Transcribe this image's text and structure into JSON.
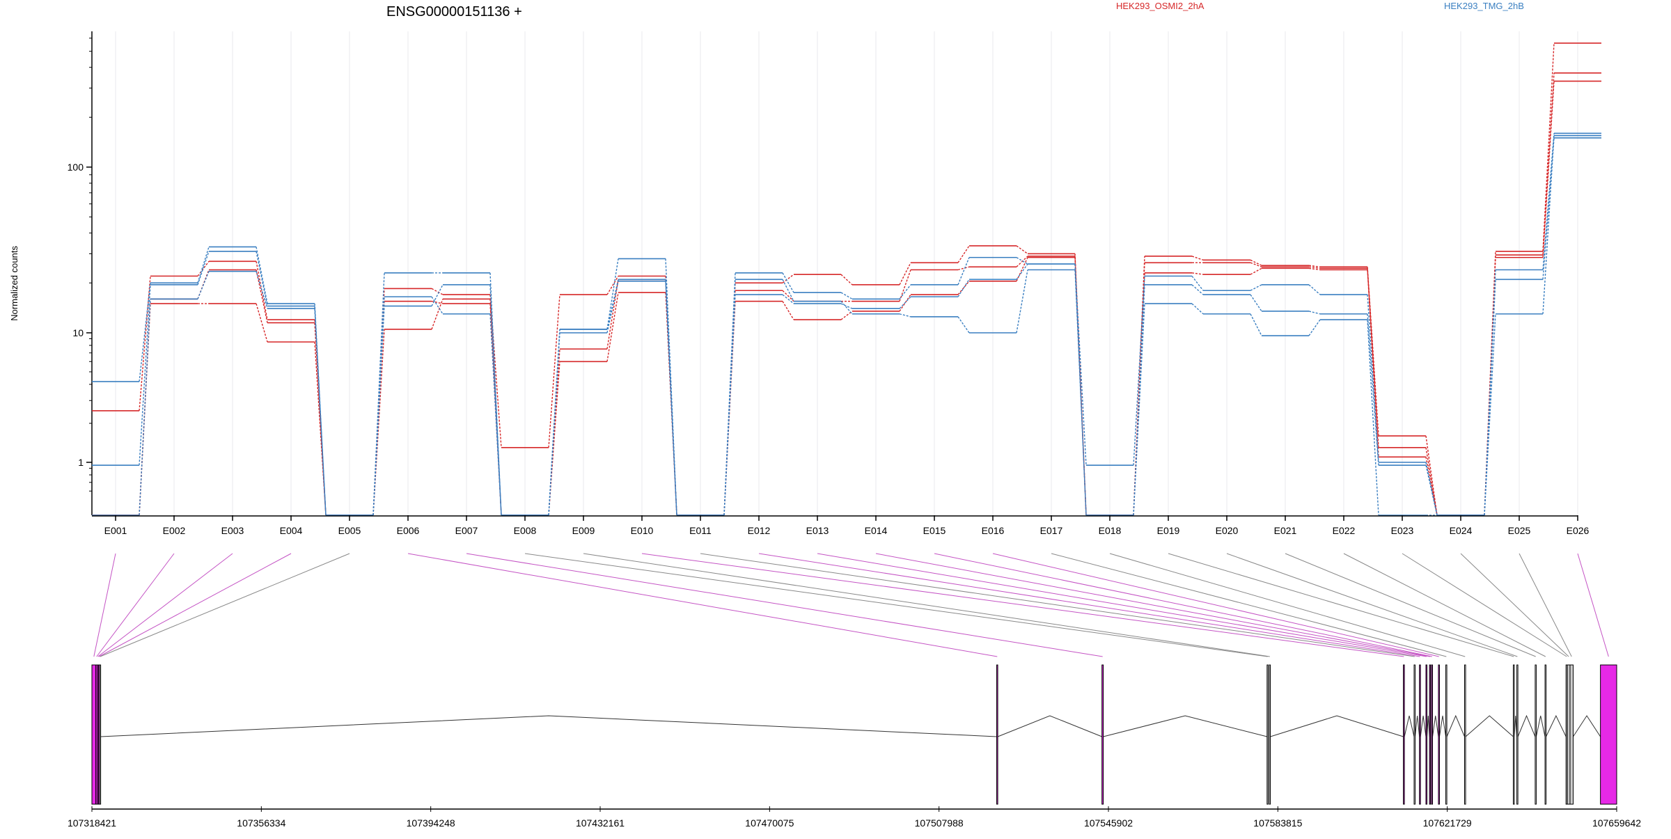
{
  "chart_data": {
    "type": "line",
    "title": "ENSG00000151136 +",
    "ylabel": "Normalized counts",
    "xlabel": "",
    "yscale": "log",
    "yticks": [
      {
        "value": 1,
        "label": "1"
      },
      {
        "value": 10,
        "label": "10"
      },
      {
        "value": 100,
        "label": "100"
      }
    ],
    "ylim": [
      0.5,
      700
    ],
    "grid": "vertical",
    "legend_position": "top",
    "categories": [
      "E001",
      "E002",
      "E003",
      "E004",
      "E005",
      "E006",
      "E007",
      "E008",
      "E009",
      "E010",
      "E011",
      "E012",
      "E013",
      "E014",
      "E015",
      "E016",
      "E017",
      "E018",
      "E019",
      "E020",
      "E021",
      "E022",
      "E023",
      "E024",
      "E025",
      "E026"
    ],
    "legend": [
      {
        "name": "HEK293_OSMI2_2hA",
        "color": "#d62728"
      },
      {
        "name": "HEK293_TMG_2hB",
        "color": "#3a7fc1"
      }
    ],
    "series": [
      {
        "group": "HEK293_OSMI2_2hA",
        "color": "#d62728",
        "values": [
          2.5,
          22,
          27,
          12,
          0.5,
          18.5,
          17,
          1.3,
          17,
          22,
          0.5,
          20,
          22.5,
          19.5,
          26.5,
          33.5,
          30,
          0.5,
          29,
          27.5,
          25.5,
          25,
          1.6,
          0.5,
          31,
          560
        ]
      },
      {
        "group": "HEK293_OSMI2_2hA",
        "color": "#d62728",
        "values": [
          0.5,
          15,
          15,
          8.5,
          0.5,
          10.5,
          16,
          0.5,
          6,
          17.5,
          0.5,
          15.5,
          12,
          13.5,
          17,
          20.5,
          28.5,
          0.5,
          23,
          22.5,
          24.5,
          24,
          1.1,
          0.5,
          28.5,
          330
        ]
      },
      {
        "group": "HEK293_OSMI2_2hA",
        "color": "#d62728",
        "values": [
          0.5,
          16,
          24,
          11.5,
          0.5,
          15.5,
          15,
          0.5,
          7.5,
          21,
          0.5,
          18,
          15.5,
          15.5,
          24,
          25,
          29,
          0.5,
          26.5,
          26.5,
          25,
          24.5,
          1.3,
          0.5,
          29.5,
          370
        ]
      },
      {
        "group": "HEK293_TMG_2hB",
        "color": "#3a7fc1",
        "values": [
          4.2,
          20,
          33,
          15,
          0.5,
          23,
          23,
          0.5,
          10.5,
          28,
          0.5,
          23,
          17.5,
          16,
          19.5,
          28.5,
          26,
          0.95,
          22,
          18,
          19.5,
          17,
          1.0,
          0.5,
          24,
          160
        ]
      },
      {
        "group": "HEK293_TMG_2hB",
        "color": "#3a7fc1",
        "values": [
          0.95,
          19.5,
          31,
          14.5,
          0.5,
          14.5,
          19.5,
          0.5,
          10,
          20.5,
          0.5,
          21,
          15.5,
          13,
          12.5,
          10,
          24,
          0.5,
          19.5,
          17,
          13.5,
          13,
          0.95,
          0.5,
          21,
          150
        ]
      },
      {
        "group": "HEK293_TMG_2hB",
        "color": "#3a7fc1",
        "values": [
          0.5,
          16,
          23.5,
          14,
          0.5,
          16.5,
          13,
          0.5,
          10.5,
          21,
          0.5,
          17,
          15,
          14,
          16.5,
          21,
          26,
          0.5,
          15,
          13,
          9.5,
          12,
          0.5,
          0.5,
          13,
          155
        ]
      }
    ],
    "gene_model": {
      "coordinate_labels": [
        "107318421",
        "107356334",
        "107394248",
        "107432161",
        "107470075",
        "107507988",
        "107545902",
        "107583815",
        "107621729",
        "107659642"
      ],
      "exons": [
        {
          "id": "E001",
          "start": 107318421,
          "end": 107319300,
          "style": "magenta"
        },
        {
          "id": "E002",
          "start": 107319300,
          "end": 107319650,
          "style": "magenta"
        },
        {
          "id": "E003",
          "start": 107319650,
          "end": 107319900,
          "style": "magenta"
        },
        {
          "id": "E004",
          "start": 107319900,
          "end": 107320150,
          "style": "magenta"
        },
        {
          "id": "E005",
          "start": 107320150,
          "end": 107320350,
          "style": "plain"
        },
        {
          "id": "E006",
          "start": 107520900,
          "end": 107521100,
          "style": "magenta"
        },
        {
          "id": "E007",
          "start": 107544450,
          "end": 107544750,
          "style": "magenta"
        },
        {
          "id": "E008",
          "start": 107581400,
          "end": 107581600,
          "style": "plain"
        },
        {
          "id": "E009",
          "start": 107581900,
          "end": 107582100,
          "style": "plain"
        },
        {
          "id": "E010",
          "start": 107611900,
          "end": 107612100,
          "style": "magenta"
        },
        {
          "id": "E011",
          "start": 107614300,
          "end": 107614500,
          "style": "plain"
        },
        {
          "id": "E012",
          "start": 107615500,
          "end": 107615700,
          "style": "magenta"
        },
        {
          "id": "E013",
          "start": 107616950,
          "end": 107617150,
          "style": "magenta"
        },
        {
          "id": "E014",
          "start": 107617750,
          "end": 107617950,
          "style": "magenta"
        },
        {
          "id": "E015",
          "start": 107618200,
          "end": 107618400,
          "style": "magenta"
        },
        {
          "id": "E016",
          "start": 107619750,
          "end": 107619950,
          "style": "magenta"
        },
        {
          "id": "E017",
          "start": 107621400,
          "end": 107621600,
          "style": "plain"
        },
        {
          "id": "E018",
          "start": 107625600,
          "end": 107625800,
          "style": "plain"
        },
        {
          "id": "E019",
          "start": 107636500,
          "end": 107636700,
          "style": "plain"
        },
        {
          "id": "E020",
          "start": 107637300,
          "end": 107637500,
          "style": "plain"
        },
        {
          "id": "E021",
          "start": 107641400,
          "end": 107641600,
          "style": "plain"
        },
        {
          "id": "E022",
          "start": 107643600,
          "end": 107643800,
          "style": "plain"
        },
        {
          "id": "E023",
          "start": 107648300,
          "end": 107648600,
          "style": "grey"
        },
        {
          "id": "E024",
          "start": 107648600,
          "end": 107649200,
          "style": "grey"
        },
        {
          "id": "E025",
          "start": 107649200,
          "end": 107649900,
          "style": "grey"
        },
        {
          "id": "E026",
          "start": 107656000,
          "end": 107659642,
          "style": "magenta"
        }
      ]
    }
  }
}
